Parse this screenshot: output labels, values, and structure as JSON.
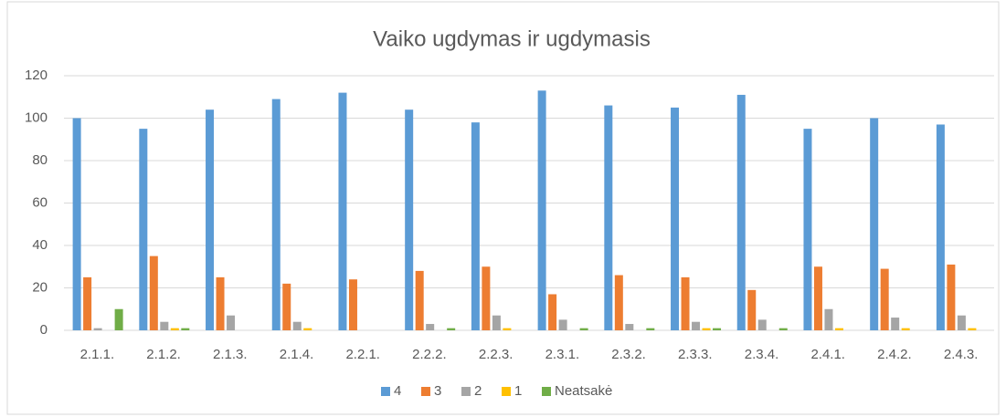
{
  "chart_data": {
    "type": "bar",
    "title": "Vaiko ugdymas ir ugdymasis",
    "categories": [
      "2.1.1.",
      "2.1.2.",
      "2.1.3.",
      "2.1.4.",
      "2.2.1.",
      "2.2.2.",
      "2.2.3.",
      "2.3.1.",
      "2.3.2.",
      "2.3.3.",
      "2.3.4.",
      "2.4.1.",
      "2.4.2.",
      "2.4.3."
    ],
    "series": [
      {
        "name": "4",
        "color": "#5b9bd5",
        "values": [
          100,
          95,
          104,
          109,
          112,
          104,
          98,
          113,
          106,
          105,
          111,
          95,
          100,
          97
        ]
      },
      {
        "name": "3",
        "color": "#ed7d31",
        "values": [
          25,
          35,
          25,
          22,
          24,
          28,
          30,
          17,
          26,
          25,
          19,
          30,
          29,
          31
        ]
      },
      {
        "name": "2",
        "color": "#a5a5a5",
        "values": [
          1,
          4,
          7,
          4,
          0,
          3,
          7,
          5,
          3,
          4,
          5,
          10,
          6,
          7
        ]
      },
      {
        "name": "1",
        "color": "#ffc000",
        "values": [
          0,
          1,
          0,
          1,
          0,
          0,
          1,
          0,
          0,
          1,
          0,
          1,
          1,
          1
        ]
      },
      {
        "name": "Neatsakė",
        "color": "#70ad47",
        "values": [
          10,
          1,
          0,
          0,
          0,
          1,
          0,
          1,
          1,
          1,
          1,
          0,
          0,
          0
        ]
      }
    ],
    "ylim": [
      0,
      120
    ],
    "yticks": [
      0,
      20,
      40,
      60,
      80,
      100,
      120
    ],
    "grid": true,
    "legend": "bottom"
  }
}
